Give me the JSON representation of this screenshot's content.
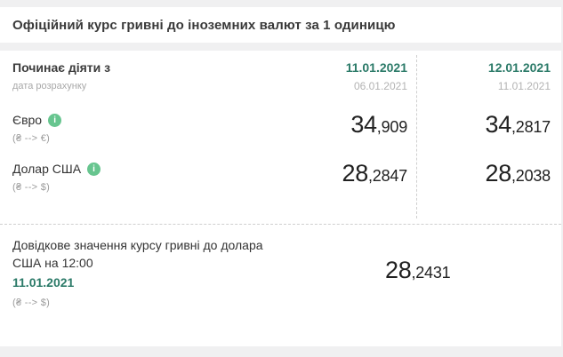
{
  "page": {
    "title": "Офіційний курс гривні до іноземних валют за 1 одиницю"
  },
  "table": {
    "header": {
      "label": "Починає діяти з",
      "sublabel": "дата розрахунку",
      "columns": [
        {
          "date": "11.01.2021",
          "calc_date": "06.01.2021"
        },
        {
          "date": "12.01.2021",
          "calc_date": "11.01.2021"
        }
      ]
    },
    "rows": [
      {
        "currency": "Євро",
        "pair": "(₴ --> €)",
        "values": [
          {
            "int": "34",
            "dec": ",909"
          },
          {
            "int": "34",
            "dec": ",2817"
          }
        ]
      },
      {
        "currency": "Долар США",
        "pair": "(₴ --> $)",
        "values": [
          {
            "int": "28",
            "dec": ",2847"
          },
          {
            "int": "28",
            "dec": ",2038"
          }
        ]
      }
    ]
  },
  "reference": {
    "title": "Довідкове значення курсу гривні до долара США на 12:00",
    "date": "11.01.2021",
    "pair": "(₴ --> $)",
    "value": {
      "int": "28",
      "dec": ",2431"
    }
  },
  "icons": {
    "info": "i"
  },
  "colors": {
    "accent_teal": "#2b7a68",
    "info_green": "#67c58f",
    "text_dark": "#333333",
    "text_gray": "#9b9b9b",
    "page_bg": "#f0f0f1"
  }
}
